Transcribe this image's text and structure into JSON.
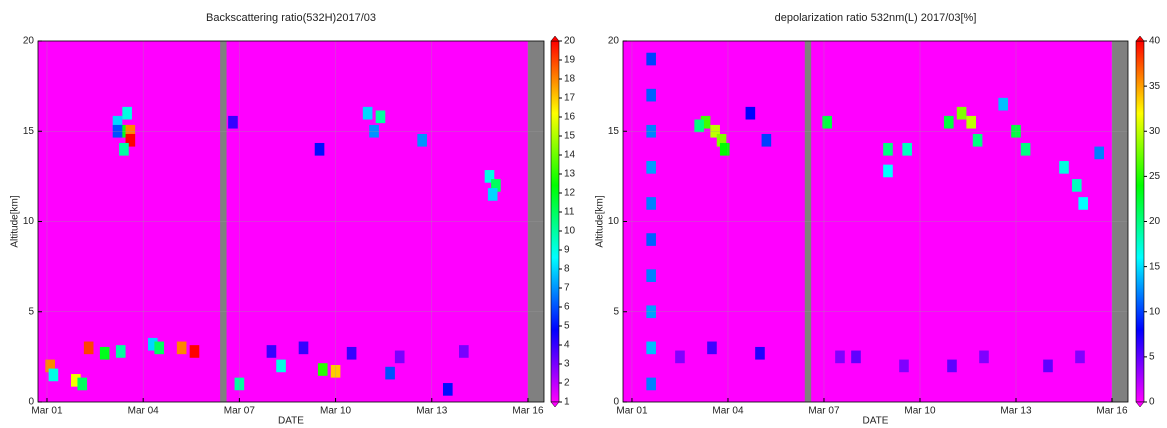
{
  "chart_data": [
    {
      "type": "heatmap",
      "title": "Backscattering ratio(532H)2017/03",
      "x_label": "DATE",
      "y_label": "Altitude[km]",
      "xlim": [
        0.72,
        16.5
      ],
      "xticks": [
        {
          "value": 1,
          "label": "Mar 01"
        },
        {
          "value": 4,
          "label": "Mar 04"
        },
        {
          "value": 7,
          "label": "Mar 07"
        },
        {
          "value": 10,
          "label": "Mar 10"
        },
        {
          "value": 13,
          "label": "Mar 13"
        },
        {
          "value": 16,
          "label": "Mar 16"
        }
      ],
      "ylim": [
        0,
        20
      ],
      "yticks": [
        0,
        5,
        10,
        15,
        20
      ],
      "grid": true,
      "colorscale": [
        "#ff00ff",
        "#0000ff",
        "#00ffff",
        "#00ff00",
        "#ffff00",
        "#ff0000"
      ],
      "no_data_color": "#808080",
      "clim": [
        1,
        20
      ],
      "cticks": [
        1,
        2,
        3,
        4,
        5,
        6,
        7,
        8,
        9,
        10,
        11,
        12,
        13,
        14,
        15,
        16,
        17,
        18,
        19,
        20
      ],
      "no_data": [
        [
          6.4,
          6.6
        ],
        [
          16,
          16.5
        ]
      ],
      "x": [
        3.2,
        3.4,
        3.6,
        3.6,
        3.4,
        3.2,
        3.5,
        6.8,
        9.5,
        11,
        11.4,
        11.2,
        12.7,
        14.8,
        15,
        14.9,
        1.1,
        1.2,
        1.9,
        2.1,
        2.3,
        2.8,
        3.3,
        4.3,
        4.5,
        5.2,
        5.6,
        7,
        8.3,
        9.6,
        10,
        11.7,
        13.5,
        9,
        10.5,
        12,
        14,
        8
      ],
      "y": [
        15.5,
        15,
        15,
        14.5,
        14,
        15,
        16,
        15.5,
        14,
        16,
        15.8,
        15,
        14.5,
        12.5,
        12,
        11.5,
        2,
        1.5,
        1.2,
        1,
        3,
        2.7,
        2.8,
        3.2,
        3,
        3,
        2.8,
        1,
        2,
        1.8,
        1.7,
        1.6,
        0.7,
        3,
        2.7,
        2.5,
        2.8,
        2.8
      ],
      "values": [
        8,
        12,
        18,
        20,
        10,
        6,
        9,
        4,
        5,
        8,
        10,
        7,
        7,
        9,
        11,
        8,
        18,
        9,
        16,
        11,
        19,
        12,
        10,
        8,
        11,
        18,
        20,
        10,
        9,
        13,
        17,
        6,
        5,
        4,
        4,
        3,
        3,
        4
      ]
    },
    {
      "type": "heatmap",
      "title": "depolarization ratio 532nm(L) 2017/03[%]",
      "x_label": "DATE",
      "y_label": "Altitude[km]",
      "xlim": [
        0.72,
        16.5
      ],
      "xticks": [
        {
          "value": 1,
          "label": "Mar 01"
        },
        {
          "value": 4,
          "label": "Mar 04"
        },
        {
          "value": 7,
          "label": "Mar 07"
        },
        {
          "value": 10,
          "label": "Mar 10"
        },
        {
          "value": 13,
          "label": "Mar 13"
        },
        {
          "value": 16,
          "label": "Mar 16"
        }
      ],
      "ylim": [
        0,
        20
      ],
      "yticks": [
        0,
        5,
        10,
        15,
        20
      ],
      "grid": true,
      "colorscale": [
        "#ff00ff",
        "#0000ff",
        "#00ffff",
        "#00ff00",
        "#ffff00",
        "#ff0000"
      ],
      "no_data_color": "#808080",
      "clim": [
        0,
        40
      ],
      "cticks": [
        0,
        5,
        10,
        15,
        20,
        25,
        30,
        35,
        40
      ],
      "no_data": [
        [
          6.4,
          6.6
        ],
        [
          16,
          16.5
        ]
      ],
      "x": [
        1.6,
        1.6,
        1.6,
        1.6,
        1.6,
        1.6,
        1.6,
        1.6,
        1.6,
        1.6,
        3.3,
        3.6,
        3.8,
        3.9,
        3.1,
        4.7,
        5.2,
        7.1,
        9,
        9,
        9.6,
        10.9,
        11.3,
        11.6,
        11.8,
        12.6,
        13,
        13.3,
        14.5,
        14.9,
        15.1,
        15.6,
        3.5,
        5,
        8,
        11,
        14,
        7.5,
        9.5,
        12,
        15,
        2.5
      ],
      "y": [
        1,
        3,
        5,
        7,
        9,
        11,
        13,
        15,
        17,
        19,
        15.5,
        15,
        14.5,
        14,
        15.3,
        16,
        14.5,
        15.5,
        14,
        12.8,
        14,
        15.5,
        16,
        15.5,
        14.5,
        16.5,
        15,
        14,
        13,
        12,
        11,
        13.8,
        3,
        2.7,
        2.5,
        2,
        2,
        2.5,
        2,
        2.5,
        2.5,
        2.5
      ],
      "values": [
        12,
        14,
        13,
        12,
        11,
        12,
        13,
        12,
        11,
        10,
        26,
        30,
        28,
        24,
        20,
        8,
        10,
        22,
        20,
        16,
        18,
        22,
        28,
        30,
        20,
        14,
        22,
        20,
        17,
        18,
        16,
        12,
        6,
        7,
        5,
        5,
        5,
        4,
        4,
        4,
        4,
        4
      ]
    }
  ]
}
